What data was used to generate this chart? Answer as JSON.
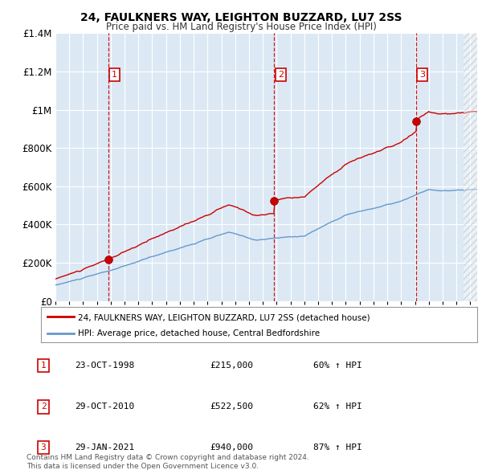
{
  "title": "24, FAULKNERS WAY, LEIGHTON BUZZARD, LU7 2SS",
  "subtitle": "Price paid vs. HM Land Registry's House Price Index (HPI)",
  "red_label": "24, FAULKNERS WAY, LEIGHTON BUZZARD, LU7 2SS (detached house)",
  "blue_label": "HPI: Average price, detached house, Central Bedfordshire",
  "transactions": [
    {
      "num": 1,
      "date": "23-OCT-1998",
      "price": 215000,
      "hpi_pct": "60%",
      "x_year": 1998.81
    },
    {
      "num": 2,
      "date": "29-OCT-2010",
      "price": 522500,
      "hpi_pct": "62%",
      "x_year": 2010.83
    },
    {
      "num": 3,
      "date": "29-JAN-2021",
      "price": 940000,
      "hpi_pct": "87%",
      "x_year": 2021.08
    }
  ],
  "footnote1": "Contains HM Land Registry data © Crown copyright and database right 2024.",
  "footnote2": "This data is licensed under the Open Government Licence v3.0.",
  "x_start": 1995.0,
  "x_end": 2025.5,
  "y_min": 0,
  "y_max": 1400000,
  "plot_bg": "#dce9f5",
  "red_color": "#cc0000",
  "blue_color": "#6699cc",
  "grid_color": "#d0d8e8",
  "vline_color_red": "#cc0000",
  "vline_color_blue": "#8ab0d0",
  "yticks": [
    0,
    200000,
    400000,
    600000,
    800000,
    1000000,
    1200000,
    1400000
  ],
  "x_ticks": [
    1995,
    1996,
    1997,
    1998,
    1999,
    2000,
    2001,
    2002,
    2003,
    2004,
    2005,
    2006,
    2007,
    2008,
    2009,
    2010,
    2011,
    2012,
    2013,
    2014,
    2015,
    2016,
    2017,
    2018,
    2019,
    2020,
    2021,
    2022,
    2023,
    2024,
    2025
  ]
}
